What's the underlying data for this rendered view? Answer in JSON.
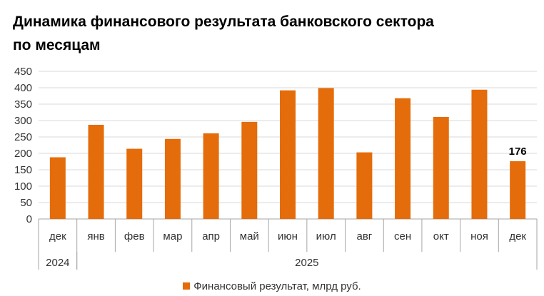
{
  "title": "Динамика финансового результата банковского сектора по месяцам",
  "colors": {
    "bar": "#E46C0A",
    "grid": "#D9D9D9",
    "axis": "#A6A6A6"
  },
  "chart_data": {
    "type": "bar",
    "categories": [
      "дек",
      "янв",
      "фев",
      "мар",
      "апр",
      "май",
      "июн",
      "июл",
      "авг",
      "сен",
      "окт",
      "ноя",
      "дек"
    ],
    "year_groups": [
      {
        "label": "2024",
        "start": 0,
        "count": 1
      },
      {
        "label": "2025",
        "start": 1,
        "count": 12
      }
    ],
    "series": [
      {
        "name": "Финансовый результат, млрд руб.",
        "values": [
          188,
          287,
          214,
          244,
          261,
          296,
          392,
          399,
          203,
          368,
          311,
          394,
          176
        ]
      }
    ],
    "yticks": [
      "0",
      "50",
      "100",
      "150",
      "200",
      "250",
      "300",
      "350",
      "400",
      "450"
    ],
    "ylim": [
      0,
      450
    ],
    "data_labels": [
      {
        "index": 12,
        "text": "176"
      }
    ],
    "grid": true,
    "legend_position": "bottom"
  }
}
